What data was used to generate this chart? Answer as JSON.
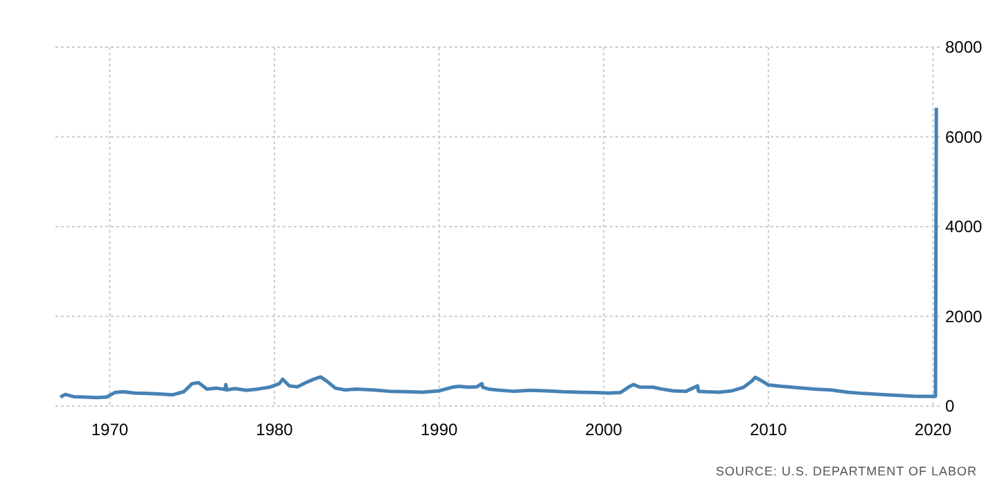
{
  "chart_data": {
    "type": "line",
    "xlim": [
      1966.7,
      2020.4
    ],
    "xticks": [
      1970,
      1980,
      1990,
      2000,
      2010,
      2020
    ],
    "ylim": [
      0,
      8000
    ],
    "yticks": [
      0,
      2000,
      4000,
      6000,
      8000
    ],
    "grid": true,
    "marker": "none",
    "line_style": "solid",
    "annotations": [
      "SOURCE: U.S. DEPARTMENT OF LABOR"
    ],
    "series": [
      {
        "color": "#4682b4",
        "x": [
          1967.0,
          1967.3,
          1967.8,
          1968.5,
          1969.2,
          1969.8,
          1970.3,
          1970.8,
          1971.5,
          1972.3,
          1973.0,
          1973.8,
          1974.5,
          1975.0,
          1975.4,
          1975.9,
          1976.5,
          1977.0,
          1977.05,
          1977.1,
          1977.6,
          1978.3,
          1979.0,
          1979.7,
          1980.3,
          1980.5,
          1980.9,
          1981.4,
          1981.9,
          1982.4,
          1982.8,
          1983.2,
          1983.7,
          1984.3,
          1985.0,
          1986.0,
          1987.0,
          1988.0,
          1989.0,
          1990.0,
          1990.8,
          1991.2,
          1991.8,
          1992.3,
          1992.6,
          1992.65,
          1993.0,
          1993.5,
          1994.5,
          1995.5,
          1996.5,
          1997.5,
          1998.5,
          1999.5,
          2000.3,
          2001.0,
          2001.5,
          2001.8,
          2002.2,
          2003.0,
          2003.5,
          2004.2,
          2005.0,
          2005.7,
          2005.75,
          2006.2,
          2007.0,
          2007.8,
          2008.5,
          2009.0,
          2009.2,
          2009.6,
          2010.0,
          2010.8,
          2011.8,
          2012.8,
          2013.8,
          2014.8,
          2015.8,
          2016.8,
          2017.8,
          2018.8,
          2019.5,
          2020.15,
          2020.2
        ],
        "values": [
          200,
          260,
          210,
          200,
          190,
          200,
          300,
          320,
          290,
          280,
          270,
          250,
          320,
          500,
          520,
          380,
          400,
          370,
          480,
          360,
          390,
          350,
          380,
          420,
          500,
          600,
          450,
          430,
          520,
          600,
          650,
          550,
          400,
          360,
          380,
          360,
          330,
          320,
          310,
          340,
          420,
          440,
          420,
          430,
          500,
          420,
          380,
          360,
          330,
          350,
          340,
          320,
          310,
          300,
          290,
          300,
          420,
          480,
          420,
          420,
          380,
          340,
          330,
          450,
          330,
          320,
          310,
          340,
          420,
          560,
          640,
          560,
          470,
          440,
          410,
          380,
          360,
          310,
          280,
          260,
          240,
          220,
          215,
          215,
          6650
        ]
      }
    ]
  }
}
